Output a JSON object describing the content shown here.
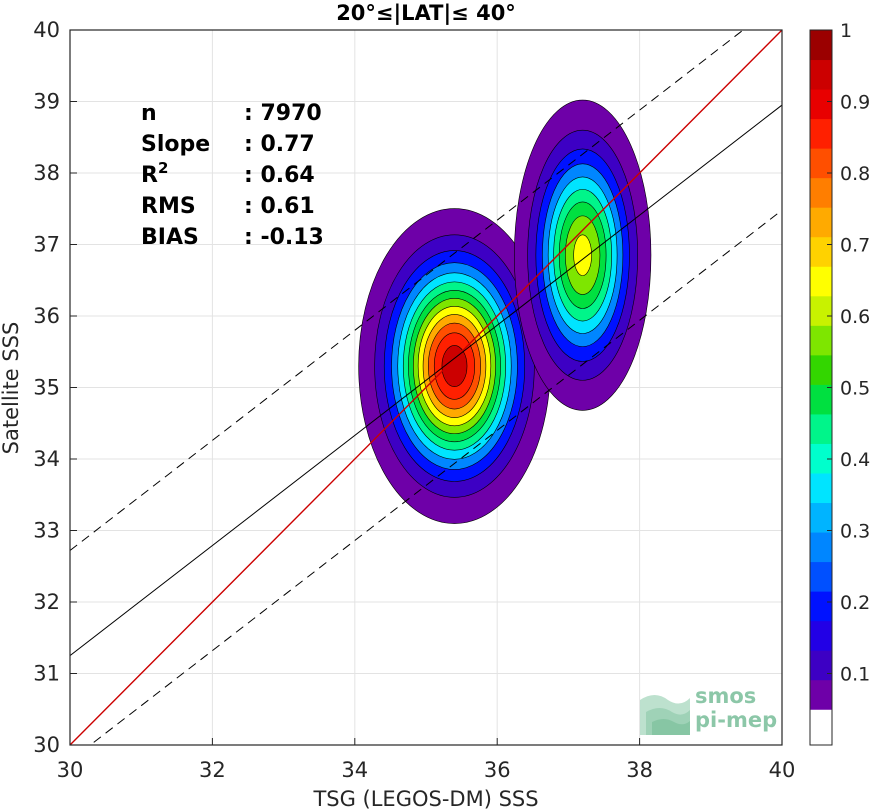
{
  "chart_data": {
    "type": "contour-density-scatter",
    "title": "20°≤|LAT|≤ 40°",
    "xlabel": "TSG (LEGOS-DM) SSS",
    "ylabel": "Satellite SSS",
    "xlim": [
      30,
      40
    ],
    "ylim": [
      30,
      40
    ],
    "xticks": [
      30,
      32,
      34,
      36,
      38,
      40
    ],
    "yticks": [
      30,
      31,
      32,
      33,
      34,
      35,
      36,
      37,
      38,
      39,
      40
    ],
    "grid": true,
    "stats": [
      {
        "label": "n",
        "sup": "",
        "value": ": 7970"
      },
      {
        "label": "Slope",
        "sup": "",
        "value": ": 0.77"
      },
      {
        "label": "R",
        "sup": "2",
        "value": ": 0.64"
      },
      {
        "label": "RMS",
        "sup": "",
        "value": ": 0.61"
      },
      {
        "label": "BIAS",
        "sup": "",
        "value": ": -0.13"
      }
    ],
    "lines": [
      {
        "kind": "one-to-one",
        "color": "#cc0000",
        "style": "solid",
        "x": [
          30,
          40
        ],
        "y": [
          30,
          40
        ]
      },
      {
        "kind": "regression",
        "color": "#000000",
        "style": "solid",
        "x": [
          30,
          40
        ],
        "y": [
          31.25,
          38.95
        ]
      },
      {
        "kind": "upper-bound",
        "color": "#000000",
        "style": "dashed",
        "x": [
          30,
          40
        ],
        "y": [
          32.72,
          40.42
        ]
      },
      {
        "kind": "lower-bound",
        "color": "#000000",
        "style": "dashed",
        "x": [
          30,
          40
        ],
        "y": [
          29.78,
          37.48
        ]
      }
    ],
    "density_clusters": [
      {
        "cx": 35.4,
        "cy": 35.3,
        "rx": 0.55,
        "ry": 0.9,
        "peak": 1.0
      },
      {
        "cx": 37.2,
        "cy": 36.85,
        "rx": 0.42,
        "ry": 0.95,
        "peak": 0.68
      }
    ],
    "colorbar": {
      "min": 0.05,
      "max": 1.0,
      "ticks": [
        0.1,
        0.2,
        0.3,
        0.4,
        0.5,
        0.6,
        0.7,
        0.8,
        0.9,
        1
      ],
      "tick_labels": [
        "0.1",
        "0.2",
        "0.3",
        "0.4",
        "0.5",
        "0.6",
        "0.7",
        "0.8",
        "0.9",
        "1"
      ],
      "bottom_color": "#ffffff",
      "levels": [
        "#6e00a8",
        "#3d00c4",
        "#2200e6",
        "#0012ff",
        "#0050ff",
        "#0086ff",
        "#00b4ff",
        "#00e4ff",
        "#00ffcc",
        "#00f58a",
        "#00e040",
        "#33d600",
        "#7ee600",
        "#c8f200",
        "#ffff00",
        "#ffd200",
        "#ffaa00",
        "#ff7e00",
        "#ff4f00",
        "#ff2000",
        "#e80000",
        "#cc0000",
        "#9b0000"
      ]
    }
  },
  "logo": {
    "line1": "smos",
    "line2": "pi-mep"
  }
}
